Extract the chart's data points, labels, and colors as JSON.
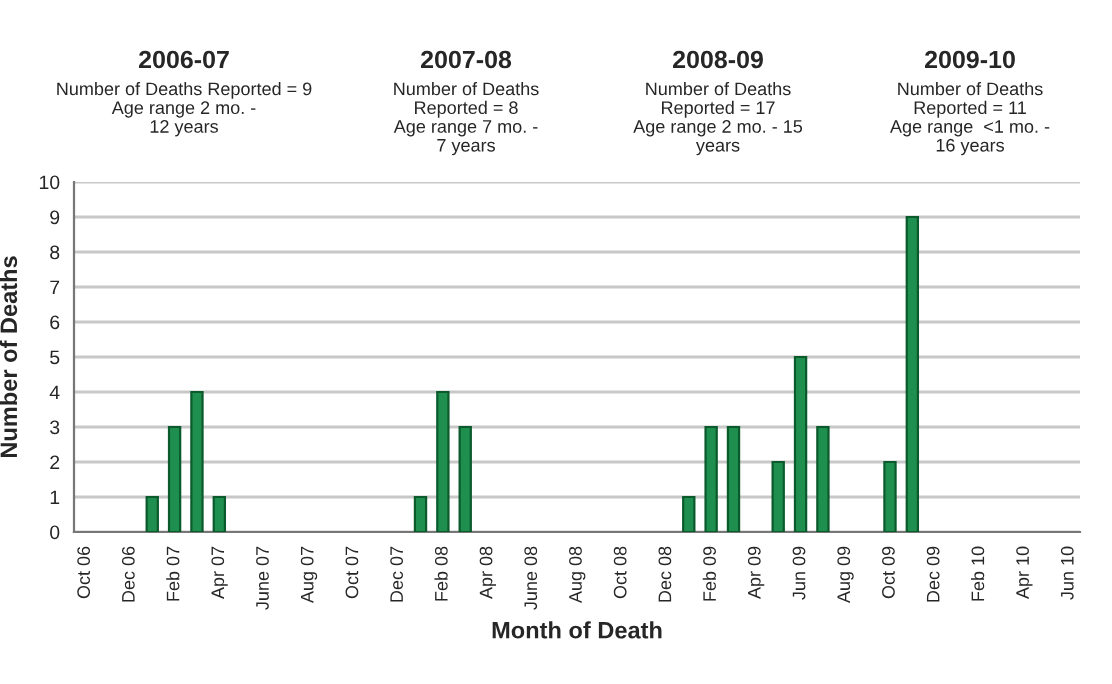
{
  "chart_data": {
    "type": "bar",
    "xlabel": "Month of Death",
    "ylabel": "Number of Deaths",
    "categories": [
      "Oct 06",
      null,
      "Dec 06",
      null,
      "Feb 07",
      null,
      "Apr 07",
      null,
      "June 07",
      null,
      "Aug 07",
      null,
      "Oct 07",
      null,
      "Dec 07",
      null,
      "Feb 08",
      null,
      "Apr 08",
      null,
      "June 08",
      null,
      "Aug 08",
      null,
      "Oct 08",
      null,
      "Dec 08",
      null,
      "Feb 09",
      null,
      "Apr 09",
      null,
      "Jun 09",
      null,
      "Aug 09",
      null,
      "Oct 09",
      null,
      "Dec 09",
      null,
      "Feb 10",
      null,
      "Apr 10",
      null,
      "Jun 10"
    ],
    "values": [
      0,
      0,
      0,
      1,
      3,
      4,
      1,
      0,
      0,
      0,
      0,
      0,
      0,
      0,
      0,
      1,
      4,
      3,
      0,
      0,
      0,
      0,
      0,
      0,
      0,
      0,
      0,
      1,
      3,
      3,
      0,
      2,
      5,
      3,
      0,
      0,
      2,
      9,
      0,
      0,
      0,
      0,
      0,
      0,
      0
    ],
    "color": "#1f8f50",
    "ylim": [
      0,
      10
    ],
    "yticks": [
      0,
      1,
      2,
      3,
      4,
      5,
      6,
      7,
      8,
      9,
      10
    ],
    "grid": "y",
    "annotations": [
      "2006-07",
      "Number of Deaths Reported = 9\nAge range 2 mo. -\n12 years",
      "2007-08",
      "Number of Deaths\nReported = 8\nAge range 7 mo. -\n7 years",
      "2008-09",
      "Number of Deaths\nReported = 17\nAge range 2 mo. - 15\nyears",
      "2009-10",
      "Number of Deaths\nReported = 11\nAge range  <1 mo. -\n16 years"
    ]
  }
}
